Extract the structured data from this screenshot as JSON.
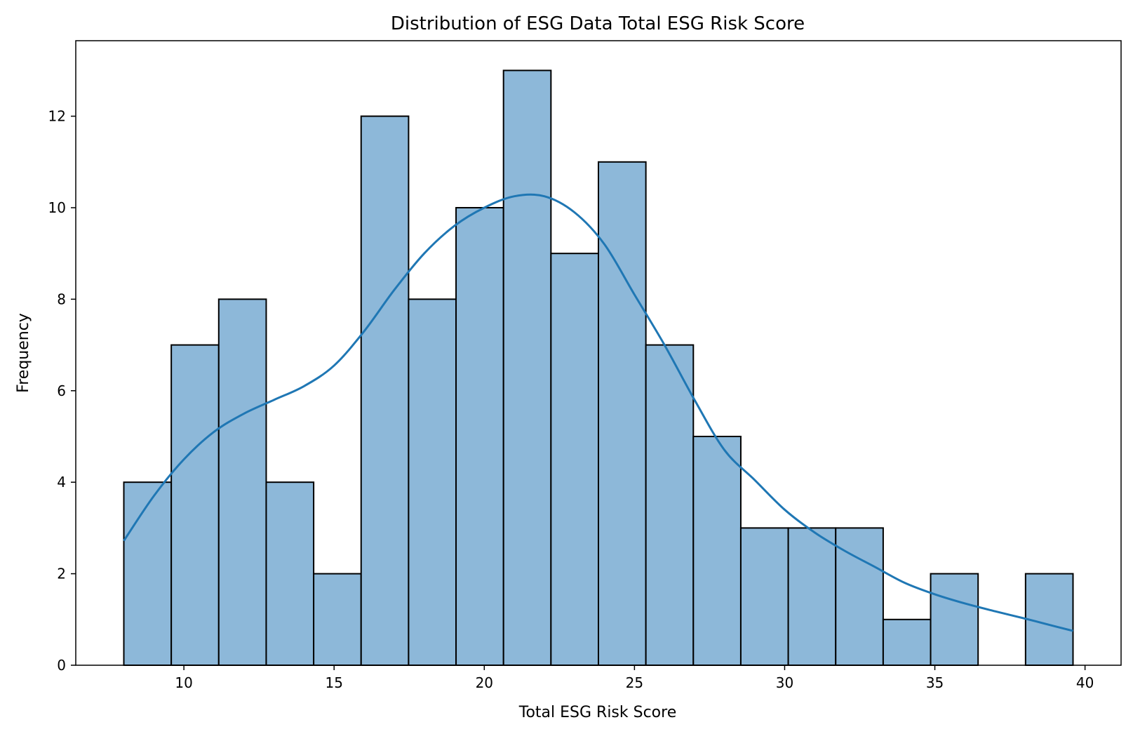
{
  "chart_data": {
    "type": "bar",
    "subtype": "histogram",
    "title": "Distribution of ESG Data Total ESG Risk Score",
    "xlabel": "Total ESG Risk Score",
    "ylabel": "Frequency",
    "xlim": [
      6.4,
      41.2
    ],
    "ylim": [
      0,
      13.65
    ],
    "xticks": [
      10,
      15,
      20,
      25,
      30,
      35,
      40
    ],
    "yticks": [
      0,
      2,
      4,
      6,
      8,
      10,
      12
    ],
    "bin_start": 8.0,
    "bin_width": 1.58,
    "counts": [
      4,
      7,
      8,
      4,
      2,
      12,
      8,
      10,
      13,
      9,
      11,
      7,
      5,
      3,
      3,
      3,
      1,
      2,
      0,
      2
    ],
    "kde": {
      "x": [
        8.0,
        9.0,
        10.0,
        11.0,
        12.0,
        13.0,
        14.0,
        15.0,
        16.0,
        17.0,
        18.0,
        19.0,
        20.0,
        21.0,
        22.0,
        23.0,
        24.0,
        25.0,
        26.0,
        27.0,
        28.0,
        29.0,
        30.0,
        31.0,
        32.0,
        33.0,
        34.0,
        35.0,
        36.0,
        37.0,
        38.0,
        39.0,
        39.6
      ],
      "y": [
        2.72,
        3.7,
        4.5,
        5.1,
        5.5,
        5.8,
        6.1,
        6.55,
        7.3,
        8.2,
        9.0,
        9.6,
        10.0,
        10.25,
        10.25,
        9.9,
        9.2,
        8.1,
        7.0,
        5.8,
        4.7,
        4.05,
        3.4,
        2.9,
        2.5,
        2.15,
        1.8,
        1.55,
        1.35,
        1.18,
        1.02,
        0.85,
        0.75
      ]
    },
    "colors": {
      "bar_fill": "#8db8d9",
      "bar_edge": "#000000",
      "kde_line": "#1f77b4"
    },
    "grid": false,
    "legend": "none"
  }
}
